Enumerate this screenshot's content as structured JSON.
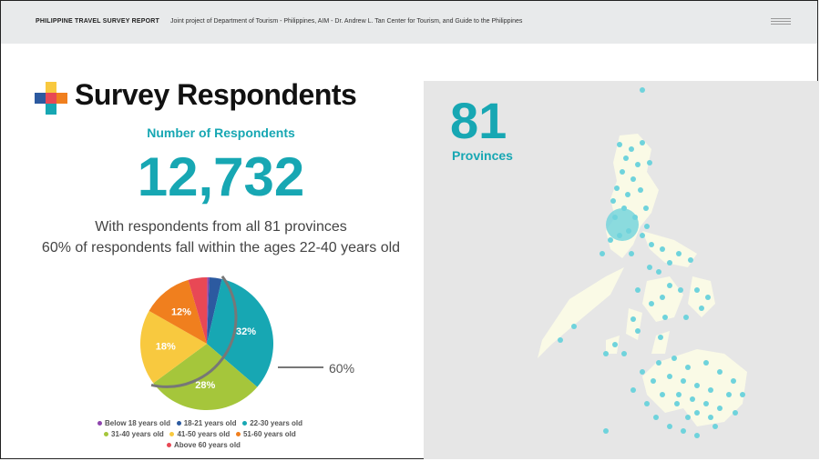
{
  "header": {
    "brand": "PHILIPPINE TRAVEL SURVEY REPORT",
    "subtitle": "Joint  project of Department of Tourism - Philippines, AIM - Dr. Andrew L. Tan Center for Tourism, and Guide to the Philippines",
    "menu_icon": "hamburger-menu-icon"
  },
  "main": {
    "title": "Survey Respondents",
    "number_label": "Number of Respondents",
    "number": "12,732",
    "line1": "With respondents from all 81 provinces",
    "line2": "60% of respondents fall within the ages 22-40 years old",
    "callout": "60%"
  },
  "map": {
    "count": "81",
    "label": "Provinces"
  },
  "colors": {
    "accent": "#17a7b3",
    "map_bg": "#e6e6e6",
    "land": "#fafae6"
  },
  "chart_data": {
    "type": "pie",
    "title": "",
    "categories": [
      "Below 18 years old",
      "18-21 years old",
      "22-30 years old",
      "31-40 years old",
      "41-50 years old",
      "51-60 years old",
      "Above 60 years old"
    ],
    "values": [
      0.5,
      3,
      32,
      28,
      18,
      12,
      4.5
    ],
    "labels": [
      "",
      "",
      "32%",
      "28%",
      "18%",
      "12%",
      ""
    ],
    "colors": [
      "#8e44ad",
      "#2c5aa0",
      "#17a7b3",
      "#a5c63b",
      "#f8c93f",
      "#f07f1e",
      "#e84855"
    ],
    "legend": {
      "row1": [
        "Below 18 years old",
        "18-21 years old",
        "22-30 years old"
      ],
      "row2": [
        "31-40 years old",
        "41-50 years old",
        "51-60 years old"
      ],
      "row3": [
        "Above 60 years old"
      ]
    },
    "legend_placement": "bottom"
  }
}
